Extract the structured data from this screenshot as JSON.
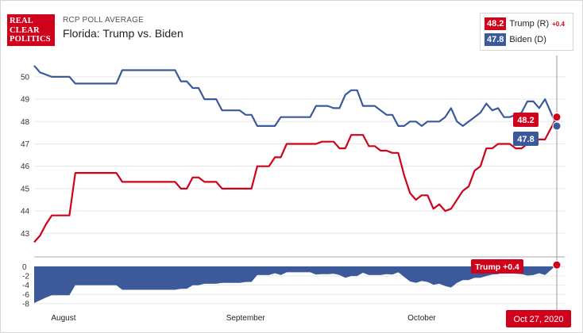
{
  "header": {
    "logo_lines": [
      "REAL",
      "CLEAR",
      "POLITICS"
    ],
    "subtitle": "RCP POLL AVERAGE",
    "title": "Florida: Trump vs. Biden"
  },
  "legend": [
    {
      "value": "48.2",
      "name": "Trump (R)",
      "spread": "+0.4",
      "color": "#d0021b"
    },
    {
      "value": "47.8",
      "name": "Biden (D)",
      "spread": "",
      "color": "#3c5a99"
    }
  ],
  "colors": {
    "trump": "#d0021b",
    "biden": "#3c5a99",
    "grid": "#e6e6e6"
  },
  "chart_data": {
    "type": "line",
    "x_unit": "day index from Jul 27, 2020 (date axis)",
    "date_range": [
      "Jul 27, 2020",
      "Oct 27, 2020"
    ],
    "yticks": [
      "50",
      "49",
      "48",
      "47",
      "46",
      "45",
      "44",
      "43"
    ],
    "ylim": [
      42.3,
      50.6
    ],
    "spread_ticks": [
      "0",
      "-2",
      "-4",
      "-6",
      "-8"
    ],
    "spread_ylim": [
      -8.2,
      0.6
    ],
    "month_labels": [
      {
        "label": "August",
        "x": 5
      },
      {
        "label": "September",
        "x": 36
      },
      {
        "label": "October",
        "x": 66
      }
    ],
    "end_date_label": "Oct 27, 2020",
    "end_labels": {
      "trump": "48.2",
      "biden": "47.8",
      "spread": "Trump +0.4"
    },
    "series": [
      {
        "name": "Trump (R)",
        "color": "#d0021b",
        "points": [
          [
            0,
            42.6
          ],
          [
            1,
            42.9
          ],
          [
            2,
            43.4
          ],
          [
            3,
            43.8
          ],
          [
            6,
            43.8
          ],
          [
            7,
            45.7
          ],
          [
            14,
            45.7
          ],
          [
            15,
            45.3
          ],
          [
            24,
            45.3
          ],
          [
            25,
            45.0
          ],
          [
            26,
            45.0
          ],
          [
            27,
            45.5
          ],
          [
            28,
            45.5
          ],
          [
            29,
            45.3
          ],
          [
            31,
            45.3
          ],
          [
            32,
            45.0
          ],
          [
            37,
            45.0
          ],
          [
            38,
            46.0
          ],
          [
            40,
            46.0
          ],
          [
            41,
            46.4
          ],
          [
            42,
            46.4
          ],
          [
            43,
            47.0
          ],
          [
            48,
            47.0
          ],
          [
            49,
            47.1
          ],
          [
            51,
            47.1
          ],
          [
            52,
            46.8
          ],
          [
            53,
            46.8
          ],
          [
            54,
            47.4
          ],
          [
            56,
            47.4
          ],
          [
            57,
            46.9
          ],
          [
            58,
            46.9
          ],
          [
            59,
            46.7
          ],
          [
            60,
            46.7
          ],
          [
            61,
            46.6
          ],
          [
            62,
            46.6
          ],
          [
            63,
            45.6
          ],
          [
            64,
            44.8
          ],
          [
            65,
            44.5
          ],
          [
            66,
            44.7
          ],
          [
            67,
            44.7
          ],
          [
            68,
            44.1
          ],
          [
            69,
            44.3
          ],
          [
            70,
            44.0
          ],
          [
            71,
            44.1
          ],
          [
            72,
            44.5
          ],
          [
            73,
            44.9
          ],
          [
            74,
            45.1
          ],
          [
            75,
            45.8
          ],
          [
            76,
            46.0
          ],
          [
            77,
            46.8
          ],
          [
            78,
            46.8
          ],
          [
            79,
            47.0
          ],
          [
            81,
            47.0
          ],
          [
            82,
            46.8
          ],
          [
            83,
            46.8
          ],
          [
            84,
            47.0
          ],
          [
            86,
            47.2
          ],
          [
            87,
            47.2
          ],
          [
            88,
            47.7
          ],
          [
            89,
            48.2
          ]
        ]
      },
      {
        "name": "Biden (D)",
        "color": "#3c5a99",
        "points": [
          [
            0,
            50.5
          ],
          [
            1,
            50.2
          ],
          [
            3,
            50.0
          ],
          [
            6,
            50.0
          ],
          [
            7,
            49.7
          ],
          [
            14,
            49.7
          ],
          [
            15,
            50.3
          ],
          [
            24,
            50.3
          ],
          [
            25,
            49.8
          ],
          [
            26,
            49.8
          ],
          [
            27,
            49.5
          ],
          [
            28,
            49.5
          ],
          [
            29,
            49.0
          ],
          [
            31,
            49.0
          ],
          [
            32,
            48.5
          ],
          [
            35,
            48.5
          ],
          [
            36,
            48.3
          ],
          [
            37,
            48.3
          ],
          [
            38,
            47.8
          ],
          [
            41,
            47.8
          ],
          [
            42,
            48.2
          ],
          [
            47,
            48.2
          ],
          [
            48,
            48.7
          ],
          [
            50,
            48.7
          ],
          [
            51,
            48.6
          ],
          [
            52,
            48.6
          ],
          [
            53,
            49.2
          ],
          [
            54,
            49.4
          ],
          [
            55,
            49.4
          ],
          [
            56,
            48.7
          ],
          [
            58,
            48.7
          ],
          [
            59,
            48.5
          ],
          [
            60,
            48.3
          ],
          [
            61,
            48.3
          ],
          [
            62,
            47.8
          ],
          [
            63,
            47.8
          ],
          [
            64,
            48.0
          ],
          [
            65,
            48.0
          ],
          [
            66,
            47.8
          ],
          [
            67,
            48.0
          ],
          [
            69,
            48.0
          ],
          [
            70,
            48.2
          ],
          [
            71,
            48.6
          ],
          [
            72,
            48.0
          ],
          [
            73,
            47.8
          ],
          [
            74,
            48.0
          ],
          [
            75,
            48.2
          ],
          [
            76,
            48.4
          ],
          [
            77,
            48.8
          ],
          [
            78,
            48.5
          ],
          [
            79,
            48.6
          ],
          [
            80,
            48.2
          ],
          [
            81,
            48.2
          ],
          [
            82,
            48.3
          ],
          [
            83,
            48.4
          ],
          [
            84,
            48.9
          ],
          [
            85,
            48.9
          ],
          [
            86,
            48.6
          ],
          [
            87,
            49.0
          ],
          [
            88,
            48.4
          ],
          [
            89,
            47.8
          ]
        ]
      }
    ]
  }
}
